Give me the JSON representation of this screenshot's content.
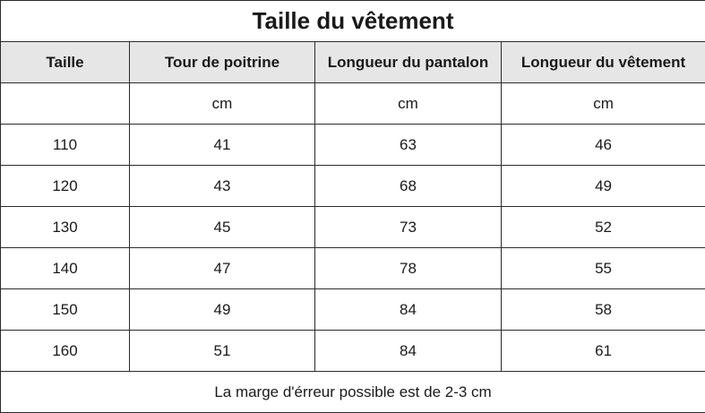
{
  "table": {
    "title": "Taille du vêtement",
    "headers": [
      "Taille",
      "Tour de poitrine",
      "Longueur du pantalon",
      "Longueur du vêtement"
    ],
    "units": [
      "",
      "cm",
      "cm",
      "cm"
    ],
    "rows": [
      [
        "110",
        "41",
        "63",
        "46"
      ],
      [
        "120",
        "43",
        "68",
        "49"
      ],
      [
        "130",
        "45",
        "73",
        "52"
      ],
      [
        "140",
        "47",
        "78",
        "55"
      ],
      [
        "150",
        "49",
        "84",
        "58"
      ],
      [
        "160",
        "51",
        "84",
        "61"
      ]
    ],
    "note": "La marge d'érreur possible est de 2-3 cm"
  },
  "colors": {
    "header_background": "#e6e6e6",
    "border": "#2b2b2b",
    "text": "#1a1a1a"
  }
}
